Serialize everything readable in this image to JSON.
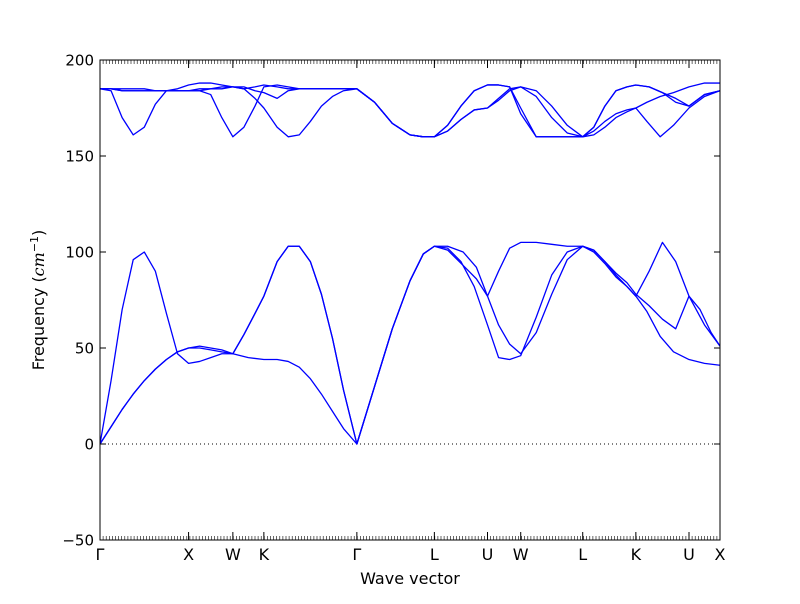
{
  "chart_data": {
    "type": "line",
    "xlabel": "Wave vector",
    "ylabel_prefix": "Frequency (",
    "ylabel_unit_base": "cm",
    "ylabel_unit_exp": "−1",
    "ylabel_suffix": ")",
    "xlim": [
      0,
      28
    ],
    "ylim": [
      -50,
      200
    ],
    "y_ticks": [
      -50,
      0,
      50,
      100,
      150,
      200
    ],
    "y_tick_labels": [
      "−50",
      "0",
      "50",
      "100",
      "150",
      "200"
    ],
    "high_symmetry_points": [
      {
        "label": "Γ",
        "x": 0
      },
      {
        "label": "X",
        "x": 4
      },
      {
        "label": "W",
        "x": 6
      },
      {
        "label": "K",
        "x": 7.4
      },
      {
        "label": "Γ",
        "x": 11.6
      },
      {
        "label": "L",
        "x": 15.1
      },
      {
        "label": "U",
        "x": 17.5
      },
      {
        "label": "W",
        "x": 19
      },
      {
        "label": "L",
        "x": 21.8
      },
      {
        "label": "K",
        "x": 24.2
      },
      {
        "label": "U",
        "x": 26.6
      },
      {
        "label": "X",
        "x": 28
      }
    ],
    "zero_line": 0,
    "line_color": "#0000ff",
    "series": [
      {
        "x": [
          0,
          0.5,
          1,
          1.5,
          2,
          2.5,
          3,
          3.5,
          4,
          4.5,
          5,
          5.5,
          6,
          6.7,
          7.4,
          8,
          8.5,
          9,
          9.5,
          10,
          10.5,
          11,
          11.6,
          12.4,
          13.2,
          14,
          14.6,
          15.1,
          15.7,
          16.4,
          17,
          17.5,
          18,
          18.5,
          19,
          19.7,
          20.4,
          21.1,
          21.8,
          22.3,
          22.8,
          23.3,
          23.8,
          24.2,
          24.8,
          25.4,
          26,
          26.6,
          27.1,
          27.6,
          28
        ],
        "y": [
          0,
          9,
          18,
          26,
          33,
          39,
          44,
          48,
          50,
          50,
          49,
          48,
          47,
          45,
          44,
          44,
          43,
          40,
          34,
          26,
          17,
          8,
          0,
          30,
          60,
          85,
          99,
          103,
          101,
          93,
          86,
          77,
          62,
          52,
          47,
          58,
          78,
          96,
          103,
          101,
          95,
          89,
          84,
          78,
          72,
          65,
          60,
          77,
          70,
          58,
          51
        ]
      },
      {
        "x": [
          0,
          0.5,
          1,
          1.5,
          2,
          2.5,
          3,
          3.5,
          4,
          4.5,
          5,
          5.5,
          6,
          6.5,
          7,
          7.4,
          8,
          8.5,
          9,
          9.5,
          10,
          10.5,
          11,
          11.6,
          12.4,
          13.2,
          14,
          14.6,
          15.1,
          15.7,
          16.3,
          16.9,
          17.5,
          18,
          18.5,
          19,
          19.7,
          20.4,
          21.1,
          21.8,
          22.3,
          22.8,
          23.3,
          23.8,
          24.2,
          24.7,
          25.3,
          25.9,
          26.6,
          27.3,
          28
        ],
        "y": [
          0,
          9,
          18,
          26,
          33,
          39,
          44,
          48,
          50,
          51,
          50,
          49,
          47,
          57,
          68,
          77,
          95,
          103,
          103,
          95,
          78,
          55,
          28,
          0,
          30,
          60,
          85,
          99,
          103,
          102,
          95,
          82,
          62,
          45,
          44,
          46,
          66,
          88,
          100,
          103,
          100,
          94,
          87,
          82,
          77,
          69,
          56,
          48,
          44,
          42,
          41
        ]
      },
      {
        "x": [
          0,
          0.5,
          1,
          1.5,
          2,
          2.5,
          3,
          3.5,
          4,
          4.5,
          5,
          5.5,
          6,
          6.5,
          7,
          7.4,
          8,
          8.5,
          9,
          9.5,
          10,
          10.5,
          11,
          11.6,
          12.4,
          13.2,
          14,
          14.6,
          15.1,
          15.7,
          16.4,
          17,
          17.5,
          18,
          18.5,
          19,
          19.7,
          20.4,
          21.1,
          21.8,
          22.3,
          22.8,
          23.3,
          23.8,
          24.2,
          24.8,
          25.4,
          26,
          26.6,
          27.3,
          28
        ],
        "y": [
          0,
          33,
          70,
          96,
          100,
          90,
          68,
          47,
          42,
          43,
          45,
          47,
          47,
          57,
          68,
          77,
          95,
          103,
          103,
          95,
          78,
          55,
          28,
          0,
          30,
          60,
          85,
          99,
          103,
          103,
          100,
          92,
          77,
          90,
          102,
          105,
          105,
          104,
          103,
          103,
          101,
          95,
          88,
          82,
          77,
          90,
          105,
          95,
          77,
          62,
          51
        ]
      },
      {
        "x": [
          0,
          0.5,
          1,
          1.5,
          2,
          2.5,
          3,
          3.5,
          4,
          4.5,
          5,
          5.5,
          6,
          6.5,
          7,
          7.4,
          8,
          8.5,
          9,
          9.5,
          10,
          10.5,
          11,
          11.6,
          12.4,
          13.2,
          14,
          14.6,
          15.1,
          15.7,
          16.3,
          16.9,
          17.5,
          18,
          18.5,
          19,
          19.7,
          20.4,
          21.1,
          21.8,
          22.3,
          22.8,
          23.3,
          23.8,
          24.2,
          24.7,
          25.3,
          25.9,
          26.6,
          27.3,
          28
        ],
        "y": [
          185,
          184,
          170,
          161,
          165,
          177,
          184,
          184,
          184,
          184,
          185,
          185,
          186,
          185,
          180,
          175,
          165,
          160,
          161,
          168,
          176,
          181,
          184,
          185,
          178,
          167,
          161,
          160,
          160,
          163,
          169,
          174,
          175,
          180,
          185,
          186,
          184,
          176,
          166,
          160,
          161,
          165,
          170,
          173,
          175,
          168,
          160,
          166,
          175,
          181,
          184
        ]
      },
      {
        "x": [
          0,
          0.5,
          1,
          1.5,
          2,
          2.5,
          3,
          3.5,
          4,
          4.5,
          5,
          5.5,
          6,
          6.5,
          7,
          7.4,
          8,
          8.5,
          9,
          9.5,
          10,
          10.5,
          11,
          11.6,
          12.4,
          13.2,
          14,
          14.6,
          15.1,
          15.7,
          16.3,
          16.9,
          17.5,
          18,
          18.5,
          19,
          19.7,
          20.4,
          21.1,
          21.8,
          22.3,
          22.8,
          23.3,
          23.8,
          24.2,
          24.7,
          25.3,
          25.9,
          26.6,
          27.3,
          28
        ],
        "y": [
          185,
          185,
          184,
          184,
          184,
          184,
          184,
          185,
          187,
          188,
          188,
          187,
          186,
          185,
          186,
          187,
          186,
          185,
          185,
          185,
          185,
          185,
          185,
          185,
          178,
          167,
          161,
          160,
          160,
          163,
          169,
          174,
          175,
          179,
          184,
          186,
          181,
          170,
          162,
          160,
          163,
          168,
          172,
          174,
          175,
          178,
          181,
          183,
          186,
          188,
          188
        ]
      },
      {
        "x": [
          0,
          0.5,
          1,
          1.5,
          2,
          2.5,
          3,
          3.5,
          4,
          4.5,
          5,
          5.5,
          6,
          6.5,
          7,
          7.4,
          8,
          8.5,
          9,
          9.5,
          10,
          10.5,
          11,
          11.6,
          12.4,
          13.2,
          14,
          14.6,
          15.1,
          15.7,
          16.3,
          16.9,
          17.5,
          18,
          18.5,
          19,
          19.7,
          20.4,
          21.1,
          21.8,
          22.3,
          22.8,
          23.3,
          23.8,
          24.2,
          24.8,
          25.4,
          26,
          26.6,
          27.3,
          28
        ],
        "y": [
          185,
          185,
          184,
          184,
          184,
          184,
          184,
          184,
          184,
          184,
          182,
          170,
          160,
          165,
          176,
          186,
          187,
          186,
          185,
          185,
          185,
          185,
          185,
          185,
          178,
          167,
          161,
          160,
          160,
          166,
          176,
          184,
          187,
          187,
          186,
          175,
          160,
          160,
          160,
          160,
          165,
          176,
          184,
          186,
          187,
          186,
          183,
          180,
          176,
          182,
          184
        ]
      },
      {
        "x": [
          0,
          0.5,
          1,
          1.5,
          2,
          2.5,
          3,
          3.5,
          4,
          4.5,
          5,
          5.5,
          6,
          6.5,
          7,
          7.4,
          8,
          8.5,
          9,
          9.5,
          10,
          10.5,
          11,
          11.6,
          12.4,
          13.2,
          14,
          14.6,
          15.1,
          15.7,
          16.3,
          16.9,
          17.5,
          18,
          18.5,
          19,
          19.7,
          20.4,
          21.1,
          21.8,
          22.3,
          22.8,
          23.3,
          23.8,
          24.2,
          24.8,
          25.4,
          26,
          26.6,
          27.3,
          28
        ],
        "y": [
          185,
          185,
          185,
          185,
          185,
          184,
          184,
          184,
          184,
          185,
          185,
          186,
          186,
          186,
          184,
          183,
          180,
          184,
          185,
          185,
          185,
          185,
          185,
          185,
          178,
          167,
          161,
          160,
          160,
          166,
          176,
          184,
          187,
          187,
          186,
          172,
          160,
          160,
          160,
          160,
          165,
          176,
          184,
          186,
          187,
          186,
          183,
          178,
          176,
          182,
          184
        ]
      }
    ]
  }
}
